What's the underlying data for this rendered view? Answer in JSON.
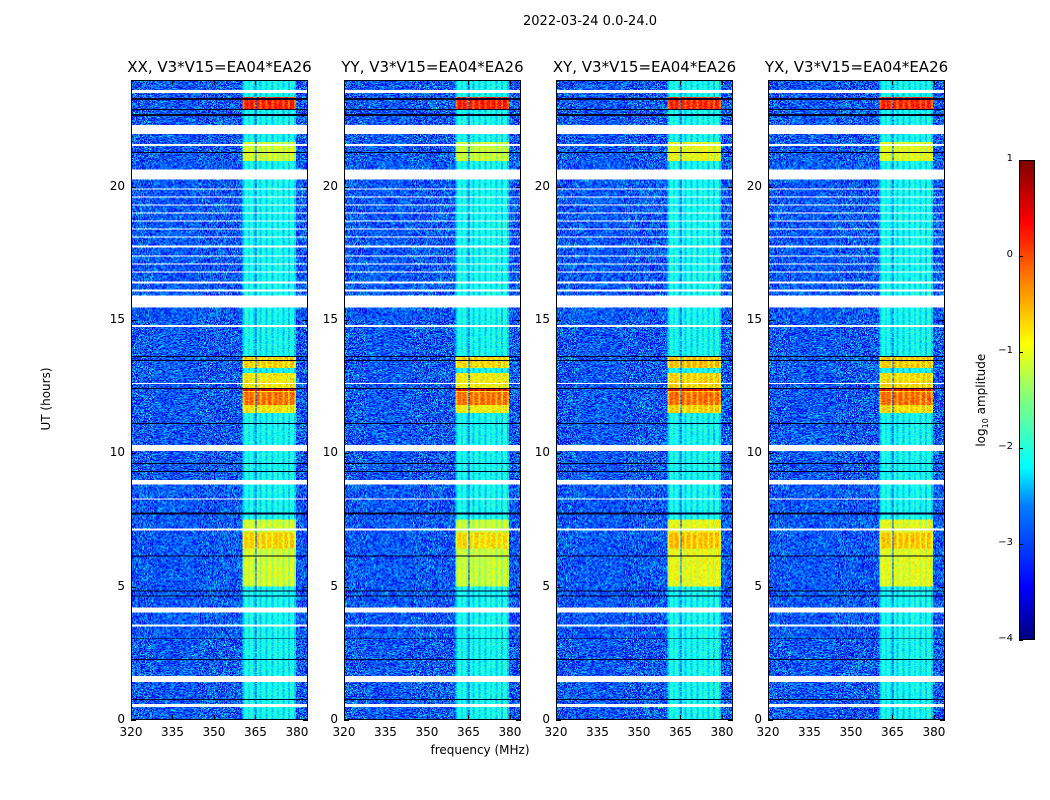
{
  "suptitle": "2022-03-24 0.0-24.0",
  "chart_data": {
    "type": "heatmap",
    "title": "2022-03-24 0.0-24.0",
    "xlabel": "frequency (MHz)",
    "ylabel": "UT (hours)",
    "xlim": [
      320,
      384
    ],
    "ylim": [
      0,
      24
    ],
    "xticks": [
      320,
      335,
      350,
      365,
      380
    ],
    "xtick_labels": [
      "320",
      "335",
      "350",
      "365",
      "380"
    ],
    "yticks": [
      0,
      5,
      10,
      15,
      20
    ],
    "ytick_labels": [
      "0",
      "5",
      "10",
      "15",
      "20"
    ],
    "panels": [
      {
        "title": "XX, V3*V15=EA04*EA26",
        "burst_scale": 1.0
      },
      {
        "title": "YY, V3*V15=EA04*EA26",
        "burst_scale": 1.05
      },
      {
        "title": "XY, V3*V15=EA04*EA26",
        "burst_scale": 0.85
      },
      {
        "title": "YX, V3*V15=EA04*EA26",
        "burst_scale": 0.9
      }
    ],
    "colorbar": {
      "label_prefix": "log",
      "label_sub": "10",
      "label_suffix": " amplitude",
      "range": [
        -4,
        1
      ],
      "ticks": [
        1,
        0,
        -1,
        -2,
        -3,
        -4
      ],
      "tick_labels": [
        "1",
        "0",
        "−1",
        "−2",
        "−3",
        "−4"
      ],
      "colormap": "jet"
    },
    "background_level": -3.0,
    "flagged_hours": [
      [
        23.55,
        23.65
      ],
      [
        22.0,
        22.35
      ],
      [
        21.55,
        21.65
      ],
      [
        20.3,
        20.65
      ],
      [
        19.9,
        19.95
      ],
      [
        19.6,
        19.65
      ],
      [
        19.3,
        19.35
      ],
      [
        19.0,
        19.05
      ],
      [
        18.7,
        18.75
      ],
      [
        18.4,
        18.45
      ],
      [
        18.1,
        18.15
      ],
      [
        17.75,
        17.8
      ],
      [
        17.4,
        17.45
      ],
      [
        17.1,
        17.15
      ],
      [
        16.8,
        16.85
      ],
      [
        16.4,
        16.45
      ],
      [
        16.1,
        16.15
      ],
      [
        15.5,
        15.95
      ],
      [
        14.75,
        14.8
      ],
      [
        12.6,
        12.65
      ],
      [
        10.1,
        10.3
      ],
      [
        8.8,
        9.0
      ],
      [
        8.25,
        8.3
      ],
      [
        7.1,
        7.15
      ],
      [
        4.0,
        4.2
      ],
      [
        3.5,
        3.55
      ],
      [
        1.4,
        1.6
      ],
      [
        0.45,
        0.55
      ]
    ],
    "dark_rows_hours": [
      [
        23.3,
        23.35
      ],
      [
        22.9,
        22.95
      ],
      [
        22.7,
        22.75
      ],
      [
        21.3,
        21.35
      ],
      [
        13.6,
        13.65
      ],
      [
        13.45,
        13.5
      ],
      [
        12.4,
        12.45
      ],
      [
        11.1,
        11.15
      ],
      [
        9.6,
        9.65
      ],
      [
        9.3,
        9.35
      ],
      [
        7.7,
        7.75
      ],
      [
        6.1,
        6.15
      ],
      [
        4.8,
        4.85
      ],
      [
        4.6,
        4.65
      ],
      [
        3.0,
        3.05
      ],
      [
        2.2,
        2.25
      ],
      [
        0.7,
        0.75
      ]
    ],
    "rfi_subbands_mhz": [
      [
        360.5,
        365.3
      ],
      [
        365.6,
        370.1
      ],
      [
        370.4,
        374.8
      ],
      [
        375.1,
        380.0
      ]
    ],
    "rfi_activity": [
      {
        "hours": [
          22.9,
          23.4
        ],
        "level": 0.3
      },
      {
        "hours": [
          21.0,
          21.7
        ],
        "level": -1.0
      },
      {
        "hours": [
          13.2,
          13.6
        ],
        "level": -0.6
      },
      {
        "hours": [
          11.5,
          13.0
        ],
        "level": -0.7
      },
      {
        "hours": [
          11.8,
          12.3
        ],
        "level": -0.1
      },
      {
        "hours": [
          12.35,
          12.45
        ],
        "level": 0.6
      },
      {
        "hours": [
          5.0,
          7.5
        ],
        "level": -1.0
      },
      {
        "hours": [
          6.4,
          7.0
        ],
        "level": -0.6
      },
      {
        "hours": [
          0,
          24
        ],
        "level": -2.0
      }
    ]
  }
}
